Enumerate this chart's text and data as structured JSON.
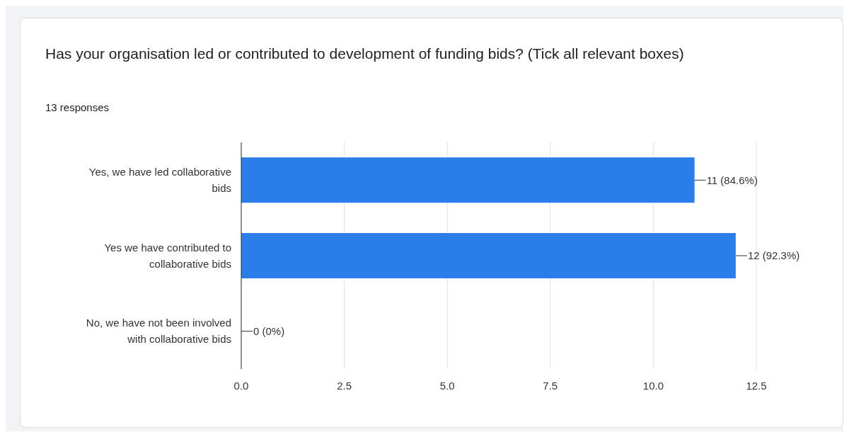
{
  "chart_data": {
    "type": "bar",
    "orientation": "horizontal",
    "title": "Has your organisation led or contributed to development of funding bids? (Tick all relevant boxes)",
    "subtitle": "13 responses",
    "categories": [
      "Yes, we have led collaborative bids",
      "Yes we have contributed to collaborative bids",
      "No, we have not been involved with collaborative bids"
    ],
    "values": [
      11,
      12,
      0
    ],
    "color": "#2b7de9",
    "value_labels": [
      "11 (84.6%)",
      "12 (92.3%)",
      "0 (0%)"
    ],
    "xlim": [
      0,
      12.5
    ],
    "xticks": [
      {
        "value": 0,
        "label": "0.0"
      },
      {
        "value": 2.5,
        "label": "2.5"
      },
      {
        "value": 5,
        "label": "5.0"
      },
      {
        "value": 7.5,
        "label": "7.5"
      },
      {
        "value": 10,
        "label": "10.0"
      },
      {
        "value": 12.5,
        "label": "12.5"
      }
    ],
    "grid": "x",
    "legend": false
  }
}
